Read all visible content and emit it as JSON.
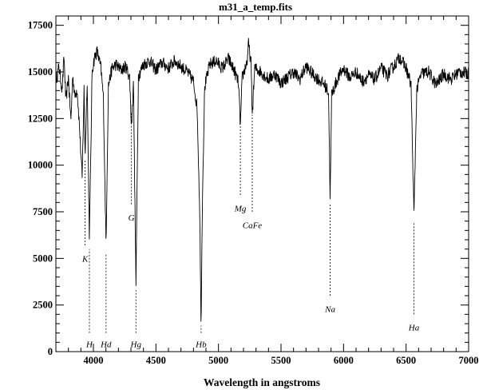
{
  "chart_data": {
    "type": "line",
    "title": "m31_a_temp.fits",
    "xlabel": "Wavelength in angstroms",
    "ylabel": "",
    "xlim": [
      3700,
      7000
    ],
    "ylim": [
      0,
      18000
    ],
    "x_ticks": [
      4000,
      4500,
      5000,
      5500,
      6000,
      6500,
      7000
    ],
    "y_ticks": [
      0,
      2500,
      5000,
      7500,
      10000,
      12500,
      15000,
      17500
    ],
    "grid": false,
    "continuum_level": 15000,
    "series": [
      {
        "points": [
          [
            3700,
            14500
          ],
          [
            3725,
            15300
          ],
          [
            3750,
            14000
          ],
          [
            3765,
            15800
          ],
          [
            3780,
            13400
          ],
          [
            3800,
            14700
          ],
          [
            3820,
            12400
          ],
          [
            3835,
            14900
          ],
          [
            3850,
            13700
          ],
          [
            3870,
            14100
          ],
          [
            3890,
            11900
          ],
          [
            3910,
            9300
          ],
          [
            3925,
            14100
          ],
          [
            3934,
            10500
          ],
          [
            3950,
            14600
          ],
          [
            3968,
            6100
          ],
          [
            3990,
            15100
          ],
          [
            4010,
            15800
          ],
          [
            4030,
            16100
          ],
          [
            4060,
            15200
          ],
          [
            4080,
            13600
          ],
          [
            4101,
            5600
          ],
          [
            4120,
            14300
          ],
          [
            4150,
            15200
          ],
          [
            4180,
            15400
          ],
          [
            4220,
            15100
          ],
          [
            4260,
            15300
          ],
          [
            4290,
            14700
          ],
          [
            4304,
            12000
          ],
          [
            4320,
            14600
          ],
          [
            4340,
            3600
          ],
          [
            4360,
            14800
          ],
          [
            4400,
            15400
          ],
          [
            4450,
            15600
          ],
          [
            4500,
            15100
          ],
          [
            4550,
            15500
          ],
          [
            4600,
            15200
          ],
          [
            4650,
            15600
          ],
          [
            4700,
            15300
          ],
          [
            4750,
            15000
          ],
          [
            4800,
            14500
          ],
          [
            4830,
            13000
          ],
          [
            4850,
            7500
          ],
          [
            4861,
            1400
          ],
          [
            4872,
            8500
          ],
          [
            4890,
            14200
          ],
          [
            4930,
            15400
          ],
          [
            4980,
            15600
          ],
          [
            5030,
            15200
          ],
          [
            5080,
            15700
          ],
          [
            5130,
            15000
          ],
          [
            5160,
            14400
          ],
          [
            5175,
            12100
          ],
          [
            5190,
            14700
          ],
          [
            5230,
            15600
          ],
          [
            5240,
            16500
          ],
          [
            5260,
            15500
          ],
          [
            5270,
            12700
          ],
          [
            5290,
            15200
          ],
          [
            5340,
            15000
          ],
          [
            5400,
            14600
          ],
          [
            5450,
            14900
          ],
          [
            5500,
            14400
          ],
          [
            5550,
            14700
          ],
          [
            5600,
            15000
          ],
          [
            5650,
            14600
          ],
          [
            5700,
            15300
          ],
          [
            5750,
            14900
          ],
          [
            5800,
            14600
          ],
          [
            5850,
            14300
          ],
          [
            5880,
            13900
          ],
          [
            5893,
            8200
          ],
          [
            5905,
            13800
          ],
          [
            5950,
            14600
          ],
          [
            6000,
            15200
          ],
          [
            6050,
            14700
          ],
          [
            6100,
            15000
          ],
          [
            6150,
            14500
          ],
          [
            6200,
            14800
          ],
          [
            6250,
            14600
          ],
          [
            6300,
            15200
          ],
          [
            6350,
            14800
          ],
          [
            6400,
            15300
          ],
          [
            6450,
            15800
          ],
          [
            6500,
            15200
          ],
          [
            6540,
            14300
          ],
          [
            6563,
            7200
          ],
          [
            6585,
            14000
          ],
          [
            6620,
            14900
          ],
          [
            6680,
            15000
          ],
          [
            6740,
            14300
          ],
          [
            6800,
            14900
          ],
          [
            6860,
            14600
          ],
          [
            6920,
            15000
          ],
          [
            7000,
            14900
          ]
        ]
      }
    ],
    "annotations": [
      {
        "label": "K",
        "wavelength": 3934,
        "label_y": 5000,
        "line_from": 5700,
        "line_to": 10300
      },
      {
        "label": "H",
        "wavelength": 3968,
        "label_y": 400,
        "line_from": 1000,
        "line_to": 5500
      },
      {
        "label": "Hd",
        "wavelength": 4101,
        "label_y": 400,
        "line_from": 1000,
        "line_to": 5200
      },
      {
        "label": "G",
        "wavelength": 4304,
        "label_y": 7200,
        "line_from": 7900,
        "line_to": 12800
      },
      {
        "label": "Hg",
        "wavelength": 4340,
        "label_y": 400,
        "line_from": 1000,
        "line_to": 3300
      },
      {
        "label": "Hb",
        "wavelength": 4861,
        "label_y": 400,
        "line_from": 1000,
        "line_to": 1400
      },
      {
        "label": "Mg",
        "wavelength": 5175,
        "label_y": 7700,
        "line_from": 8400,
        "line_to": 12100
      },
      {
        "label": "CaFe",
        "wavelength": 5270,
        "label_y": 6800,
        "line_from": 7500,
        "line_to": 12700
      },
      {
        "label": "Na",
        "wavelength": 5893,
        "label_y": 2300,
        "line_from": 3000,
        "line_to": 7900
      },
      {
        "label": "Ha",
        "wavelength": 6563,
        "label_y": 1300,
        "line_from": 2000,
        "line_to": 6900
      }
    ]
  }
}
